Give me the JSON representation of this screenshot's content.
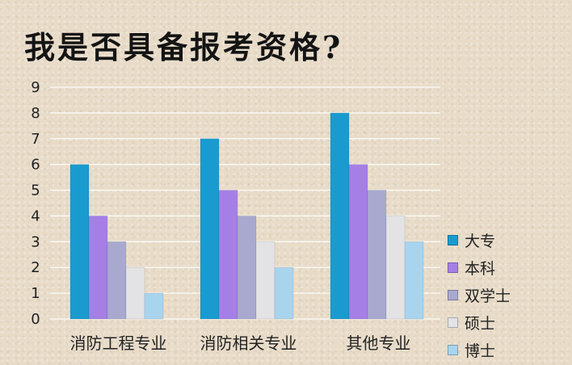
{
  "chart_data": {
    "type": "bar",
    "title": "我是否具备报考资格?",
    "xlabel": "",
    "ylabel": "",
    "ylim": [
      0,
      9
    ],
    "yticks": [
      0,
      1,
      2,
      3,
      4,
      5,
      6,
      7,
      8,
      9
    ],
    "grid": true,
    "legend_position": "right",
    "categories": [
      "消防工程专业",
      "消防相关专业",
      "其他专业"
    ],
    "series": [
      {
        "name": "大专",
        "color": "#1a9bcf",
        "values": [
          6,
          7,
          8
        ]
      },
      {
        "name": "本科",
        "color": "#a57fe6",
        "values": [
          4,
          5,
          6
        ]
      },
      {
        "name": "双学士",
        "color": "#a9a9d0",
        "values": [
          3,
          4,
          5
        ]
      },
      {
        "name": "硕士",
        "color": "#e3e3e6",
        "values": [
          2,
          3,
          4
        ]
      },
      {
        "name": "博士",
        "color": "#a9d4ee",
        "values": [
          1,
          2,
          3
        ]
      }
    ]
  }
}
